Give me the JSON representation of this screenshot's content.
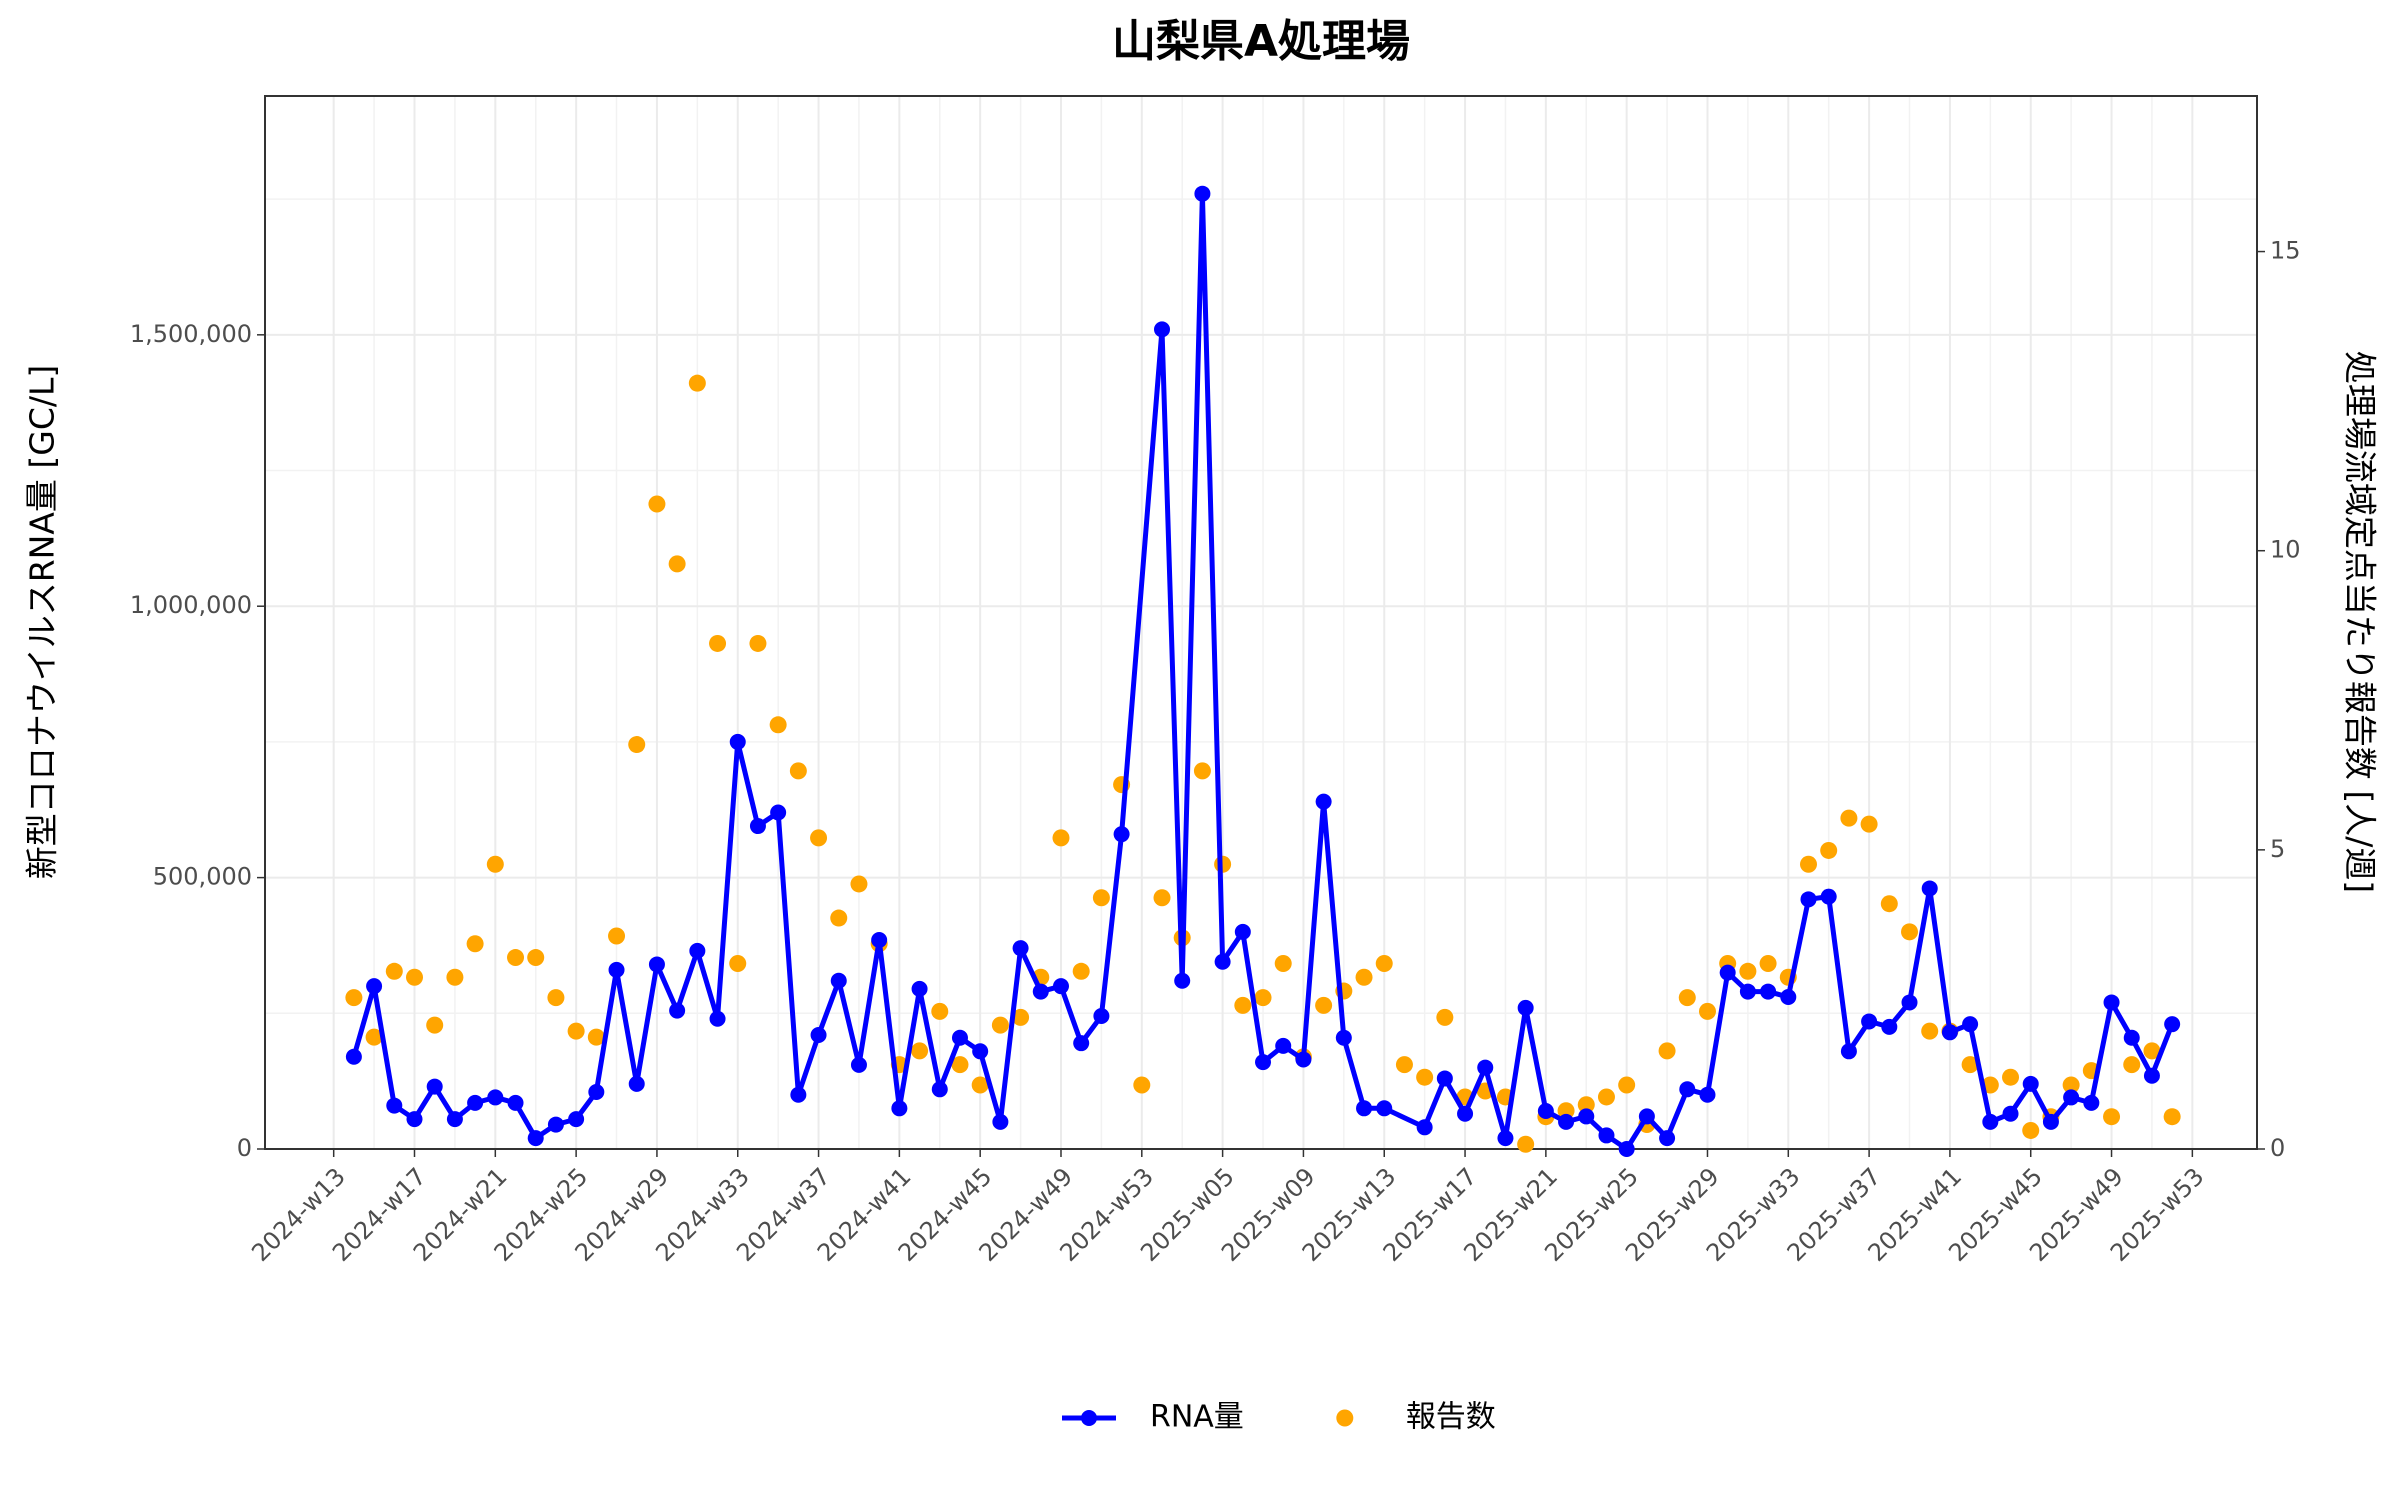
{
  "chart_data": {
    "type": "line",
    "title": "山梨県A処理場",
    "y_label": "新型コロナウイルスRNA量 [GC/L]",
    "y2_label": "処理場流域定点当たり報告数 [人/週]",
    "grid": true,
    "legend": "bottom",
    "xticks": [
      "2024-w13",
      "2024-w17",
      "2024-w21",
      "2024-w25",
      "2024-w29",
      "2024-w33",
      "2024-w37",
      "2024-w41",
      "2024-w45",
      "2024-w49",
      "2024-w53",
      "2025-w05",
      "2025-w09",
      "2025-w13",
      "2025-w17",
      "2025-w21",
      "2025-w25",
      "2025-w29",
      "2025-w33",
      "2025-w37",
      "2025-w41",
      "2025-w45",
      "2025-w49",
      "2025-w53"
    ],
    "ylim": [
      0,
      1940000
    ],
    "yticks": [
      0,
      {
        "value": 500000,
        "label": "500,000"
      },
      {
        "value": 1000000,
        "label": "1,000,000"
      },
      {
        "value": 1500000,
        "label": "1,500,000"
      }
    ],
    "y2lim": [
      0,
      17.6
    ],
    "y2ticks": [
      0,
      5,
      10,
      15
    ],
    "series": [
      {
        "name": "RNA量",
        "type": "line",
        "color": "#0000ff",
        "x": [
          "2024-w14",
          "2024-w15",
          "2024-w16",
          "2024-w17",
          "2024-w18",
          "2024-w19",
          "2024-w20",
          "2024-w21",
          "2024-w22",
          "2024-w23",
          "2024-w24",
          "2024-w25",
          "2024-w26",
          "2024-w27",
          "2024-w28",
          "2024-w29",
          "2024-w30",
          "2024-w31",
          "2024-w32",
          "2024-w33",
          "2024-w34",
          "2024-w35",
          "2024-w36",
          "2024-w37",
          "2024-w38",
          "2024-w39",
          "2024-w40",
          "2024-w41",
          "2024-w42",
          "2024-w43",
          "2024-w44",
          "2024-w45",
          "2024-w46",
          "2024-w47",
          "2024-w48",
          "2024-w49",
          "2024-w50",
          "2024-w51",
          "2024-w52",
          "2025-w02",
          "2025-w03",
          "2025-w04",
          "2025-w05",
          "2025-w06",
          "2025-w07",
          "2025-w08",
          "2025-w09",
          "2025-w10",
          "2025-w11",
          "2025-w12",
          "2025-w13",
          "2025-w15",
          "2025-w16",
          "2025-w17",
          "2025-w18",
          "2025-w19",
          "2025-w20",
          "2025-w21",
          "2025-w22",
          "2025-w23",
          "2025-w24",
          "2025-w25",
          "2025-w26",
          "2025-w27",
          "2025-w28",
          "2025-w29",
          "2025-w30",
          "2025-w31",
          "2025-w32",
          "2025-w33",
          "2025-w34",
          "2025-w35",
          "2025-w36",
          "2025-w37",
          "2025-w38",
          "2025-w39",
          "2025-w40",
          "2025-w41",
          "2025-w42",
          "2025-w43",
          "2025-w44",
          "2025-w45",
          "2025-w46",
          "2025-w47",
          "2025-w48",
          "2025-w49",
          "2025-w50",
          "2025-w51",
          "2025-w52"
        ],
        "values": [
          170000,
          300000,
          80000,
          55000,
          115000,
          55000,
          85000,
          95000,
          85000,
          20000,
          45000,
          55000,
          105000,
          330000,
          120000,
          340000,
          255000,
          365000,
          240000,
          750000,
          595000,
          620000,
          100000,
          210000,
          310000,
          155000,
          385000,
          75000,
          295000,
          110000,
          205000,
          180000,
          50000,
          370000,
          290000,
          300000,
          195000,
          245000,
          580000,
          1510000,
          310000,
          1760000,
          345000,
          400000,
          160000,
          190000,
          165000,
          640000,
          205000,
          75000,
          75000,
          40000,
          130000,
          65000,
          150000,
          20000,
          260000,
          70000,
          50000,
          60000,
          25000,
          0,
          60000,
          20000,
          110000,
          100000,
          325000,
          290000,
          290000,
          280000,
          460000,
          465000,
          180000,
          235000,
          225000,
          270000,
          480000,
          215000,
          230000,
          50000,
          65000,
          120000,
          50000,
          95000,
          85000,
          270000,
          205000,
          135000,
          230000
        ]
      },
      {
        "name": "報告数",
        "type": "scatter",
        "axis": "y2",
        "color": "#ffa500",
        "x": [
          "2024-w14",
          "2024-w15",
          "2024-w16",
          "2024-w17",
          "2024-w18",
          "2024-w19",
          "2024-w20",
          "2024-w21",
          "2024-w22",
          "2024-w23",
          "2024-w24",
          "2024-w25",
          "2024-w26",
          "2024-w27",
          "2024-w28",
          "2024-w29",
          "2024-w30",
          "2024-w31",
          "2024-w32",
          "2024-w33",
          "2024-w34",
          "2024-w35",
          "2024-w36",
          "2024-w37",
          "2024-w38",
          "2024-w39",
          "2024-w40",
          "2024-w41",
          "2024-w42",
          "2024-w43",
          "2024-w44",
          "2024-w45",
          "2024-w46",
          "2024-w47",
          "2024-w48",
          "2024-w49",
          "2024-w50",
          "2024-w51",
          "2024-w52",
          "2024-w53",
          "2025-w02",
          "2025-w03",
          "2025-w04",
          "2025-w05",
          "2025-w06",
          "2025-w07",
          "2025-w08",
          "2025-w09",
          "2025-w10",
          "2025-w11",
          "2025-w12",
          "2025-w13",
          "2025-w14",
          "2025-w15",
          "2025-w16",
          "2025-w17",
          "2025-w18",
          "2025-w19",
          "2025-w20",
          "2025-w21",
          "2025-w22",
          "2025-w23",
          "2025-w24",
          "2025-w25",
          "2025-w26",
          "2025-w27",
          "2025-w28",
          "2025-w29",
          "2025-w30",
          "2025-w31",
          "2025-w32",
          "2025-w33",
          "2025-w34",
          "2025-w35",
          "2025-w36",
          "2025-w37",
          "2025-w38",
          "2025-w39",
          "2025-w40",
          "2025-w41",
          "2025-w42",
          "2025-w43",
          "2025-w44",
          "2025-w45",
          "2025-w46",
          "2025-w47",
          "2025-w48",
          "2025-w49",
          "2025-w50",
          "2025-w51",
          "2025-w52"
        ],
        "values": [
          2.53,
          1.87,
          2.97,
          2.87,
          2.07,
          2.87,
          3.43,
          4.76,
          3.2,
          3.2,
          2.53,
          1.97,
          1.87,
          3.56,
          6.76,
          10.78,
          9.78,
          12.8,
          8.45,
          3.1,
          8.45,
          7.09,
          6.32,
          5.2,
          3.86,
          4.43,
          3.43,
          1.41,
          1.64,
          2.3,
          1.41,
          1.07,
          2.07,
          2.2,
          2.87,
          5.2,
          2.97,
          4.2,
          6.09,
          1.07,
          4.2,
          3.53,
          6.32,
          4.76,
          2.4,
          2.53,
          3.1,
          1.54,
          2.4,
          2.64,
          2.87,
          3.1,
          1.41,
          1.2,
          2.2,
          0.87,
          0.97,
          0.87,
          0.08,
          0.54,
          0.64,
          0.74,
          0.87,
          1.07,
          0.41,
          1.64,
          2.53,
          2.3,
          3.1,
          2.97,
          3.1,
          2.87,
          4.76,
          4.99,
          5.53,
          5.43,
          4.1,
          3.63,
          1.97,
          1.97,
          1.41,
          1.07,
          1.2,
          0.31,
          0.54,
          1.07,
          1.31,
          0.54,
          1.41,
          1.64,
          0.54
        ]
      }
    ]
  }
}
